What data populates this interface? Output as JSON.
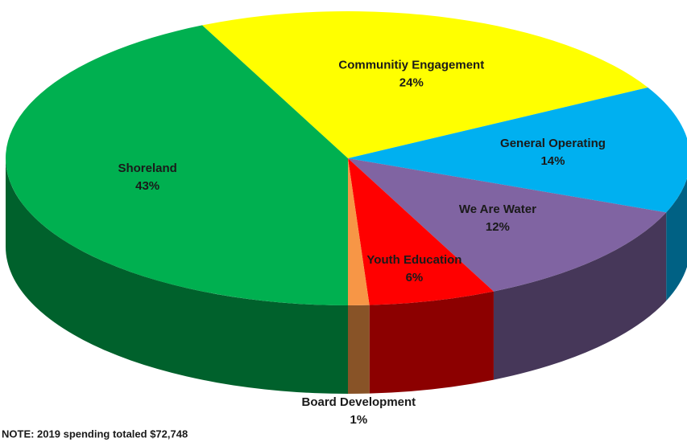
{
  "chart_data": {
    "type": "pie3d",
    "categories": [
      "Communitiy Engagement",
      "General Operating",
      "We Are Water",
      "Youth Education",
      "Board Development",
      "Shoreland"
    ],
    "values": [
      24,
      14,
      12,
      6,
      1,
      43
    ],
    "value_labels": [
      "24%",
      "14%",
      "12%",
      "6%",
      "1%",
      "43%"
    ],
    "colors": [
      "#ffff00",
      "#00b0f0",
      "#8064a2",
      "#ff0000",
      "#f79646",
      "#00b050"
    ],
    "note": "NOTE: 2019 spending totaled $72,748"
  }
}
